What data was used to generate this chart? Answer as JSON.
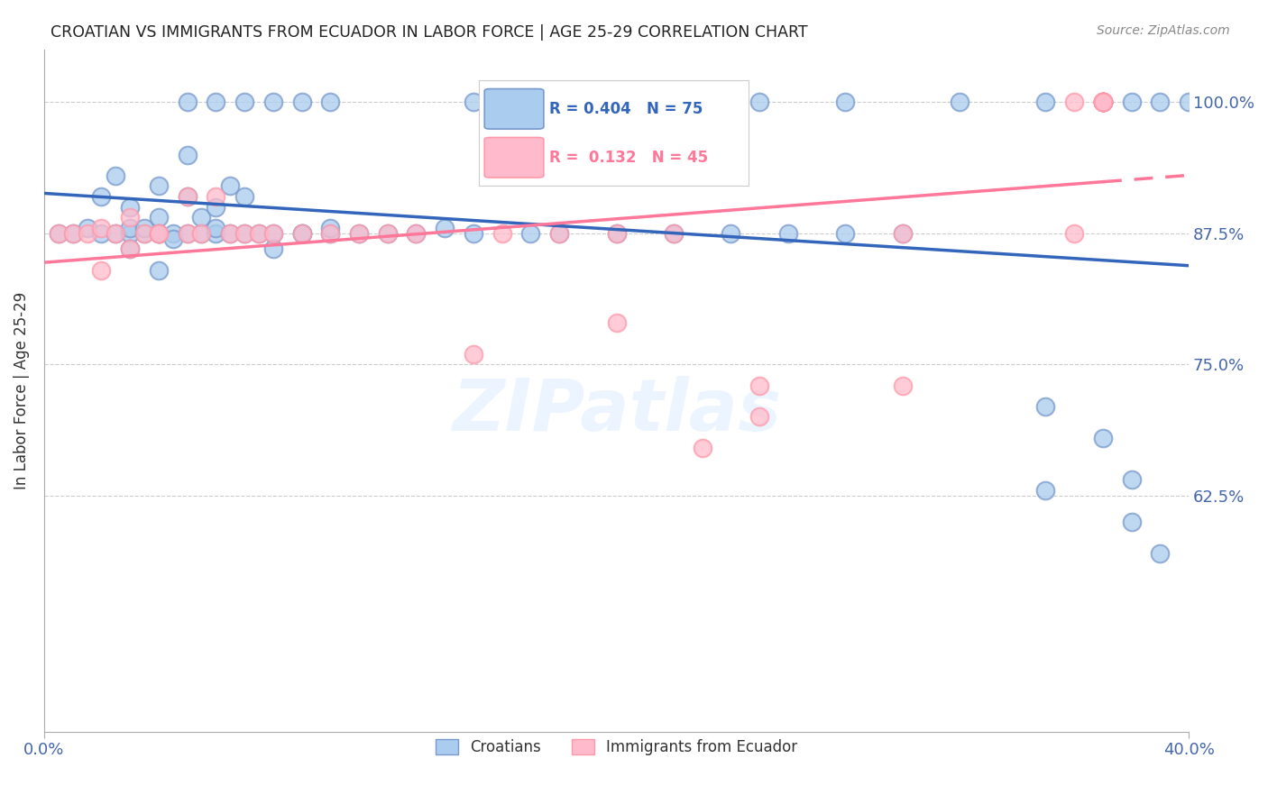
{
  "title": "CROATIAN VS IMMIGRANTS FROM ECUADOR IN LABOR FORCE | AGE 25-29 CORRELATION CHART",
  "source": "Source: ZipAtlas.com",
  "ylabel": "In Labor Force | Age 25-29",
  "xlim": [
    0.0,
    0.4
  ],
  "ylim": [
    0.4,
    1.05
  ],
  "ytick_positions": [
    0.625,
    0.75,
    0.875,
    1.0
  ],
  "ytick_labels": [
    "62.5%",
    "75.0%",
    "87.5%",
    "100.0%"
  ],
  "blue_line_r": 0.404,
  "blue_line_n": 75,
  "pink_line_r": 0.132,
  "pink_line_n": 45,
  "blue_color_face": "#AACCEE",
  "blue_color_edge": "#7799CC",
  "pink_color_face": "#FFBBCC",
  "pink_color_edge": "#FF99AA",
  "blue_line_color": "#3366BB",
  "pink_line_color": "#FF7799",
  "axis_label_color": "#4466AA",
  "grid_color": "#CCCCCC",
  "title_color": "#222222",
  "source_color": "#888888",
  "watermark_text": "ZIPatlas",
  "watermark_color": "#DDEEFF",
  "blue_scatter_x": [
    0.005,
    0.01,
    0.015,
    0.02,
    0.02,
    0.025,
    0.025,
    0.03,
    0.03,
    0.03,
    0.03,
    0.035,
    0.035,
    0.04,
    0.04,
    0.04,
    0.04,
    0.04,
    0.045,
    0.045,
    0.05,
    0.05,
    0.05,
    0.055,
    0.055,
    0.06,
    0.06,
    0.06,
    0.065,
    0.065,
    0.07,
    0.07,
    0.075,
    0.08,
    0.08,
    0.09,
    0.09,
    0.1,
    0.1,
    0.11,
    0.12,
    0.13,
    0.14,
    0.15,
    0.17,
    0.18,
    0.2,
    0.22,
    0.24,
    0.26,
    0.28,
    0.3,
    0.05,
    0.06,
    0.07,
    0.08,
    0.09,
    0.1,
    0.15,
    0.18,
    0.2,
    0.25,
    0.28,
    0.32,
    0.35,
    0.37,
    0.38,
    0.39,
    0.4,
    0.35,
    0.37,
    0.38,
    0.39,
    0.35,
    0.38
  ],
  "blue_scatter_y": [
    0.875,
    0.875,
    0.88,
    0.875,
    0.91,
    0.875,
    0.93,
    0.875,
    0.9,
    0.88,
    0.86,
    0.875,
    0.88,
    0.875,
    0.89,
    0.92,
    0.84,
    0.875,
    0.875,
    0.87,
    0.875,
    0.91,
    0.95,
    0.875,
    0.89,
    0.875,
    0.88,
    0.9,
    0.875,
    0.92,
    0.875,
    0.91,
    0.875,
    0.875,
    0.86,
    0.875,
    0.875,
    0.875,
    0.88,
    0.875,
    0.875,
    0.875,
    0.88,
    0.875,
    0.875,
    0.875,
    0.875,
    0.875,
    0.875,
    0.875,
    0.875,
    0.875,
    1.0,
    1.0,
    1.0,
    1.0,
    1.0,
    1.0,
    1.0,
    1.0,
    1.0,
    1.0,
    1.0,
    1.0,
    1.0,
    1.0,
    1.0,
    1.0,
    1.0,
    0.71,
    0.68,
    0.64,
    0.57,
    0.63,
    0.6
  ],
  "pink_scatter_x": [
    0.005,
    0.01,
    0.015,
    0.02,
    0.02,
    0.025,
    0.03,
    0.03,
    0.035,
    0.04,
    0.04,
    0.05,
    0.05,
    0.055,
    0.06,
    0.065,
    0.07,
    0.075,
    0.08,
    0.09,
    0.1,
    0.11,
    0.12,
    0.13,
    0.15,
    0.16,
    0.18,
    0.2,
    0.22,
    0.25,
    0.3,
    0.36,
    0.2,
    0.23,
    0.25,
    0.3,
    0.36,
    0.37,
    0.37,
    0.37,
    0.37,
    0.37,
    0.37,
    0.37,
    0.37
  ],
  "pink_scatter_y": [
    0.875,
    0.875,
    0.875,
    0.88,
    0.84,
    0.875,
    0.86,
    0.89,
    0.875,
    0.875,
    0.875,
    0.875,
    0.91,
    0.875,
    0.91,
    0.875,
    0.875,
    0.875,
    0.875,
    0.875,
    0.875,
    0.875,
    0.875,
    0.875,
    0.76,
    0.875,
    0.875,
    0.875,
    0.875,
    0.73,
    0.875,
    0.875,
    0.79,
    0.67,
    0.7,
    0.73,
    1.0,
    1.0,
    1.0,
    1.0,
    1.0,
    1.0,
    1.0,
    1.0,
    1.0
  ]
}
